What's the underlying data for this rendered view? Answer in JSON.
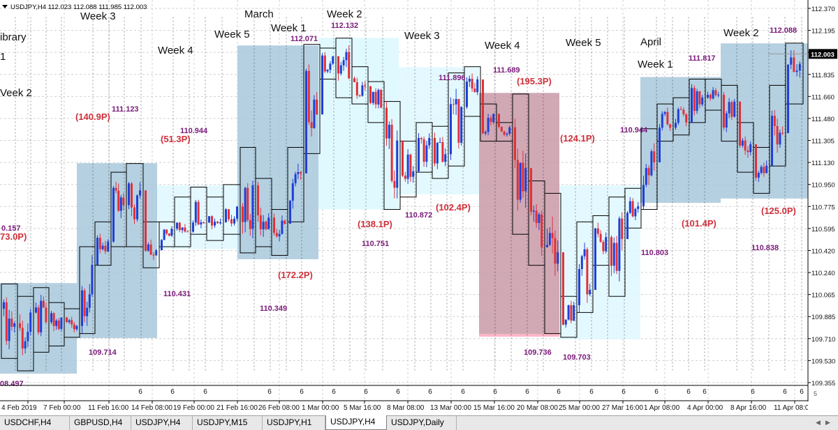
{
  "header": {
    "symbol_line": "USDJPY,H4  112.023 112.088 111.985 112.003",
    "current_price": "112.003"
  },
  "price_axis": {
    "ticks": [
      "112.370",
      "112.195",
      "112.015",
      "111.835",
      "111.660",
      "111.480",
      "111.305",
      "111.130",
      "110.950",
      "110.775",
      "110.595",
      "110.420",
      "110.240",
      "110.065",
      "109.885",
      "109.710",
      "109.530",
      "109.355"
    ]
  },
  "time_axis": {
    "labels": [
      "4 Feb 2019",
      "7 Feb 00:00",
      "11 Feb 16:00",
      "14 Feb 08:00",
      "19 Feb 00:00",
      "21 Feb 16:00",
      "26 Feb 08:00",
      "1 Mar 00:00",
      "5 Mar 16:00",
      "8 Mar 08:00",
      "13 Mar 00:00",
      "15 Mar 16:00",
      "20 Mar 08:00",
      "25 Mar 00:00",
      "27 Mar 16:00",
      "1 Apr 08:00",
      "4 Apr 00:00",
      "8 Apr 16:00",
      "11 Apr 08:00"
    ],
    "session_marks": [
      "6",
      "6",
      "6",
      "6",
      "6",
      "6",
      "6",
      "6",
      "6",
      "6",
      "6",
      "6",
      "6",
      "6",
      "6",
      "6",
      "6",
      "6",
      "6",
      "6",
      "6"
    ]
  },
  "period_labels": [
    "Week 3",
    "Week 4",
    "Week 5",
    "March",
    "Week 1",
    "Week 2",
    "Week 3",
    "Week 4",
    "Week 5",
    "April",
    "Week 1",
    "Week 2",
    "ibrary",
    "1",
    "Veek 2"
  ],
  "price_annotations": [
    "111.123",
    "110.944",
    "112.071",
    "112.132",
    "111.896",
    "111.689",
    "111.817",
    "112.088",
    "110.944",
    "110.872",
    "110.751",
    "110.431",
    "110.349",
    "109.714",
    "109.736",
    "109.703",
    "110.803",
    "110.838",
    "0.157",
    "08.497"
  ],
  "range_annotations": [
    "(140.9P)",
    "(51.3P)",
    "(138.1P)",
    "(102.4P)",
    "(195.3P)",
    "(124.1P)",
    "(172.2P)",
    "(101.4P)",
    "(125.0P)",
    "73.0P)"
  ],
  "tabs": [
    "USDCHF,H4",
    "GBPUSD,H4",
    "USDJPY,H4",
    "USDJPY,M15",
    "USDJPY,H1",
    "USDJPY,H4",
    "USDJPY,Daily"
  ],
  "active_tab": 5,
  "colors": {
    "bull": "#1f3fd6",
    "bear": "#e0303a",
    "week_zone": "#a8c8dc",
    "week_zone_light": "#dff8ff",
    "month_zone_down": "#c89aa8",
    "label_purple": "#7a1a7a",
    "label_red": "#d0303a"
  },
  "chart_data": {
    "type": "candlestick",
    "title": "USDJPY,H4",
    "ylim": [
      109.3,
      112.44
    ],
    "weekly_ranges": [
      {
        "start": "4 Feb 2019",
        "high": 110.157,
        "low": 109.427
      },
      {
        "start": "11 Feb",
        "high": 111.123,
        "low": 109.714
      },
      {
        "start": "18 Feb",
        "high": 110.944,
        "low": 110.431
      },
      {
        "start": "25 Feb",
        "high": 112.071,
        "low": 110.349
      },
      {
        "start": "4 Mar",
        "high": 112.132,
        "low": 110.751
      },
      {
        "start": "11 Mar",
        "high": 111.896,
        "low": 110.872
      },
      {
        "start": "18 Mar",
        "high": 111.689,
        "low": 109.736
      },
      {
        "start": "25 Mar",
        "high": 110.944,
        "low": 109.703
      },
      {
        "start": "1 Apr",
        "high": 111.817,
        "low": 110.803
      },
      {
        "start": "8 Apr",
        "high": 112.088,
        "low": 110.838
      }
    ],
    "last_price": 112.003
  }
}
